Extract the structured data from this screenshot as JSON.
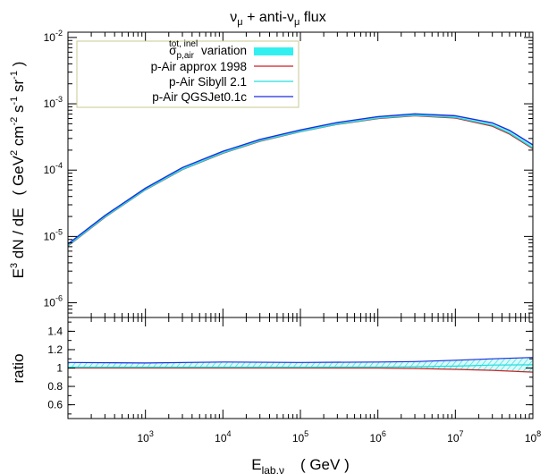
{
  "chart_data": [
    {
      "type": "line",
      "title_parts": {
        "nu": "ν",
        "mu": "μ",
        "plus_anti": " + anti-",
        "flux": " flux"
      },
      "ylabel_parts": {
        "e": "E",
        "e_exp": "3",
        "dnde": " dN / dE",
        "unit_open": "( GeV",
        "exp2": "2",
        "cm": " cm",
        "expm2": "-2",
        "s": " s",
        "expm1": "-1",
        "sr": " sr",
        "unit_close": " )"
      },
      "xscale": "log",
      "yscale": "log",
      "xlim": [
        100,
        100000000
      ],
      "ylim": [
        6e-07,
        0.012
      ],
      "y_ticks": [
        {
          "value": 0.01,
          "base": "10",
          "exp": "-2"
        },
        {
          "value": 0.001,
          "base": "10",
          "exp": "-3"
        },
        {
          "value": 0.0001,
          "base": "10",
          "exp": "-4"
        },
        {
          "value": 1e-05,
          "base": "10",
          "exp": "-5"
        },
        {
          "value": 1e-06,
          "base": "10",
          "exp": "-6"
        }
      ],
      "legend": {
        "placement": "top-left",
        "band": {
          "sym": "σ",
          "sub": "p,air",
          "sup": "tot, inel",
          "rest": " variation",
          "color": "#33f0f0"
        },
        "entries": [
          {
            "label": "p-Air approx 1998",
            "color": "#cc2222"
          },
          {
            "label": "p-Air Sibyll 2.1",
            "color": "#22dddd"
          },
          {
            "label": "p-Air QGSJet0.1c",
            "color": "#1a2fe0"
          }
        ]
      },
      "band": {
        "x": [
          100,
          300,
          1000,
          3000,
          10000,
          30000,
          100000,
          300000,
          1000000,
          3000000,
          10000000,
          30000000,
          50000000,
          100000000
        ],
        "lower": [
          7.2e-06,
          1.95e-05,
          5.05e-05,
          0.000102,
          0.00018,
          0.000273,
          0.00038,
          0.00049,
          0.0006,
          0.00066,
          0.00061,
          0.00046,
          0.00035,
          0.00021
        ],
        "upper": [
          7.7e-06,
          2.07e-05,
          5.35e-05,
          0.000109,
          0.000192,
          0.00029,
          0.000403,
          0.000522,
          0.00064,
          0.000705,
          0.00066,
          0.000515,
          0.000397,
          0.00024
        ]
      },
      "series": [
        {
          "name": "p-Air approx 1998",
          "x": [
            100,
            300,
            1000,
            3000,
            10000,
            30000,
            100000,
            300000,
            1000000,
            3000000,
            10000000,
            30000000,
            50000000,
            100000000
          ],
          "y": [
            7.2e-06,
            1.95e-05,
            5.05e-05,
            0.000102,
            0.00018,
            0.000273,
            0.00038,
            0.00049,
            0.0006,
            0.00066,
            0.00061,
            0.00046,
            0.00035,
            0.00021
          ]
        },
        {
          "name": "p-Air Sibyll 2.1",
          "x": [
            100,
            300,
            1000,
            3000,
            10000,
            30000,
            100000,
            300000,
            1000000,
            3000000,
            10000000,
            30000000,
            50000000,
            100000000
          ],
          "y": [
            7.3e-06,
            1.97e-05,
            5.1e-05,
            0.000103,
            0.000182,
            0.000276,
            0.000384,
            0.000495,
            0.000608,
            0.00067,
            0.000625,
            0.000475,
            0.000362,
            0.000217
          ]
        },
        {
          "name": "p-Air QGSJet0.1c",
          "x": [
            100,
            300,
            1000,
            3000,
            10000,
            30000,
            100000,
            300000,
            1000000,
            3000000,
            10000000,
            30000000,
            50000000,
            100000000
          ],
          "y": [
            7.7e-06,
            2.07e-05,
            5.35e-05,
            0.000109,
            0.000192,
            0.00029,
            0.000403,
            0.000522,
            0.00064,
            0.000705,
            0.00066,
            0.000515,
            0.000397,
            0.00024
          ]
        }
      ]
    },
    {
      "type": "line",
      "ylabel": "ratio",
      "xlabel_parts": {
        "e": "E",
        "sub": "lab,ν",
        "unit": "( GeV )"
      },
      "xscale": "log",
      "xlim": [
        100,
        100000000
      ],
      "ylim": [
        0.45,
        1.55
      ],
      "y_ticks": [
        {
          "value": 0.6,
          "label": "0.6"
        },
        {
          "value": 0.8,
          "label": "0.8"
        },
        {
          "value": 1,
          "label": "1"
        },
        {
          "value": 1.2,
          "label": "1.2"
        },
        {
          "value": 1.4,
          "label": "1.4"
        }
      ],
      "x_ticks": [
        {
          "value": 1000,
          "base": "10",
          "exp": "3"
        },
        {
          "value": 10000,
          "base": "10",
          "exp": "4"
        },
        {
          "value": 100000,
          "base": "10",
          "exp": "5"
        },
        {
          "value": 1000000,
          "base": "10",
          "exp": "6"
        },
        {
          "value": 10000000,
          "base": "10",
          "exp": "7"
        },
        {
          "value": 100000000,
          "base": "10",
          "exp": "8"
        }
      ],
      "band": {
        "x": [
          100,
          1000,
          10000,
          100000,
          1000000,
          3000000,
          10000000,
          30000000,
          100000000
        ],
        "lower": [
          1.0,
          1.0,
          1.0,
          1.0,
          1.0,
          0.995,
          0.985,
          0.975,
          0.955
        ],
        "upper": [
          1.06,
          1.055,
          1.065,
          1.06,
          1.065,
          1.07,
          1.085,
          1.1,
          1.115
        ]
      },
      "series": [
        {
          "name": "p-Air approx 1998",
          "x": [
            100,
            1000,
            10000,
            100000,
            1000000,
            3000000,
            10000000,
            30000000,
            100000000
          ],
          "y": [
            1.0,
            1.0,
            1.0,
            1.0,
            1.0,
            0.995,
            0.985,
            0.975,
            0.955
          ]
        },
        {
          "name": "p-Air Sibyll 2.1",
          "x": [
            100,
            1000,
            10000,
            100000,
            1000000,
            3000000,
            10000000,
            30000000,
            100000000
          ],
          "y": [
            1.01,
            1.01,
            1.01,
            1.01,
            1.012,
            1.015,
            1.02,
            1.032,
            1.035
          ]
        },
        {
          "name": "p-Air QGSJet0.1c",
          "x": [
            100,
            1000,
            10000,
            100000,
            1000000,
            3000000,
            10000000,
            30000000,
            100000000
          ],
          "y": [
            1.06,
            1.055,
            1.065,
            1.06,
            1.065,
            1.07,
            1.085,
            1.1,
            1.115
          ]
        }
      ]
    }
  ]
}
